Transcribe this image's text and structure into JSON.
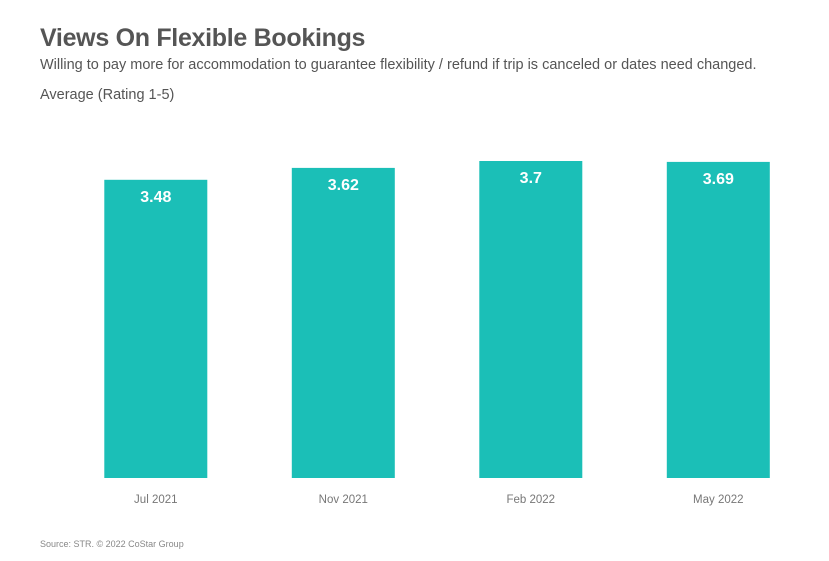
{
  "header": {
    "title": "Views On Flexible Bookings",
    "subtitle": "Willing to pay more for accommodation to guarantee flexibility / refund if trip is canceled or dates need changed.",
    "unit_label": "Average (Rating 1-5)"
  },
  "footer": {
    "source": "Source: STR. © 2022 CoStar Group"
  },
  "colors": {
    "bar": "#1bbfb7",
    "data_label": "#ffffff",
    "tick_label": "#777777"
  },
  "chart_data": {
    "type": "bar",
    "categories": [
      "Jul 2021",
      "Nov 2021",
      "Feb 2022",
      "May 2022"
    ],
    "values": [
      3.48,
      3.62,
      3.7,
      3.69
    ],
    "title": "Views On Flexible Bookings",
    "subtitle": "Willing to pay more for accommodation to guarantee flexibility / refund if trip is canceled or dates need changed.",
    "ylabel": "Average (Rating 1-5)",
    "xlabel": "",
    "ylim": [
      0,
      3.7
    ],
    "grid": false,
    "legend": "none",
    "data_labels": [
      "3.48",
      "3.62",
      "3.7",
      "3.69"
    ]
  }
}
